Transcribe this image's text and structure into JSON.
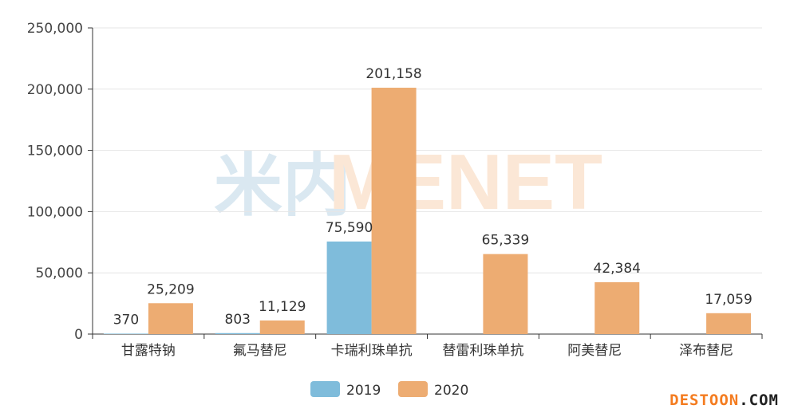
{
  "chart_data": {
    "type": "bar",
    "categories": [
      "甘露特钠",
      "氟马替尼",
      "卡瑞利珠单抗",
      "替雷利珠单抗",
      "阿美替尼",
      "泽布替尼"
    ],
    "series": [
      {
        "name": "2019",
        "values": [
          370,
          803,
          75590,
          null,
          null,
          null
        ],
        "labels": [
          "370",
          "803",
          "75,590",
          "",
          "",
          ""
        ],
        "color": "#7fbcdb"
      },
      {
        "name": "2020",
        "values": [
          25209,
          11129,
          201158,
          65339,
          42384,
          17059
        ],
        "labels": [
          "25,209",
          "11,129",
          "201,158",
          "65,339",
          "42,384",
          "17,059"
        ],
        "color": "#edac72"
      }
    ],
    "ylim": [
      0,
      250000
    ],
    "yticks": [
      0,
      50000,
      100000,
      150000,
      200000,
      250000
    ],
    "ytick_labels": [
      "0",
      "50,000",
      "100,000",
      "150,000",
      "200,000",
      "250,000"
    ],
    "grid": true,
    "legend_position": "bottom-center"
  },
  "watermark": {
    "mark": "米内",
    "text": "MENET",
    "mark_color": "#d6e6f0",
    "text_color": "#fbe5d2"
  },
  "site_logo": {
    "part1": "DESTOON",
    "part2": ".COM"
  }
}
